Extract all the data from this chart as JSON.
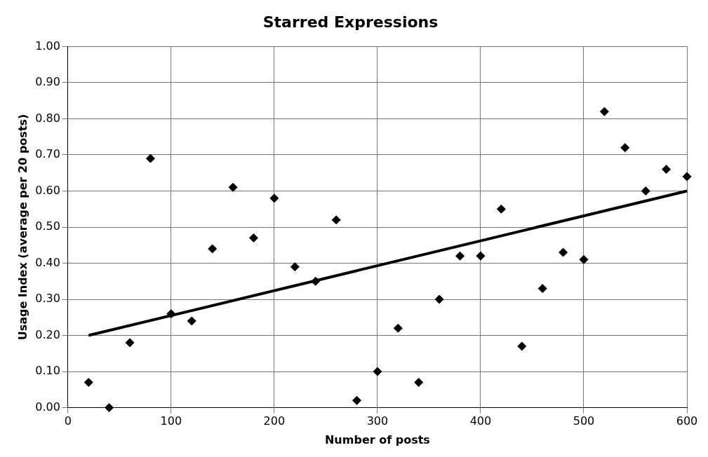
{
  "chart_data": {
    "type": "scatter",
    "title": "Starred Expressions",
    "xlabel": "Number of posts",
    "ylabel": "Usage Index (average per 20 posts)",
    "xlim": [
      0,
      600
    ],
    "xticks": [
      0,
      100,
      200,
      300,
      400,
      500,
      600
    ],
    "ylim": [
      0,
      1
    ],
    "yticks": [
      {
        "value": 0,
        "label": "0.00"
      },
      {
        "value": 0.1,
        "label": "0.10"
      },
      {
        "value": 0.2,
        "label": "0.20"
      },
      {
        "value": 0.3,
        "label": "0.30"
      },
      {
        "value": 0.4,
        "label": "0.40"
      },
      {
        "value": 0.5,
        "label": "0.50"
      },
      {
        "value": 0.6,
        "label": "0.60"
      },
      {
        "value": 0.7,
        "label": "0.70"
      },
      {
        "value": 0.8,
        "label": "0.80"
      },
      {
        "value": 0.9,
        "label": "0.90"
      },
      {
        "value": 1,
        "label": "1.00"
      }
    ],
    "grid": true,
    "marker": "diamond",
    "series": [
      {
        "type": "scatter",
        "color": "#000000",
        "x": [
          20,
          40,
          60,
          80,
          100,
          120,
          140,
          160,
          180,
          200,
          220,
          240,
          260,
          280,
          300,
          320,
          340,
          360,
          380,
          400,
          420,
          440,
          460,
          480,
          500,
          520,
          540,
          560,
          580,
          600
        ],
        "values": [
          0.07,
          0.0,
          0.18,
          0.69,
          0.26,
          0.24,
          0.44,
          0.61,
          0.47,
          0.58,
          0.39,
          0.35,
          0.52,
          0.02,
          0.1,
          0.22,
          0.07,
          0.3,
          0.42,
          0.42,
          0.55,
          0.17,
          0.33,
          0.43,
          0.41,
          0.82,
          0.72,
          0.6,
          0.66,
          0.64
        ]
      },
      {
        "type": "line",
        "color": "#000000",
        "marker": "none",
        "x": [
          20,
          600
        ],
        "values": [
          0.2,
          0.6
        ]
      }
    ]
  }
}
